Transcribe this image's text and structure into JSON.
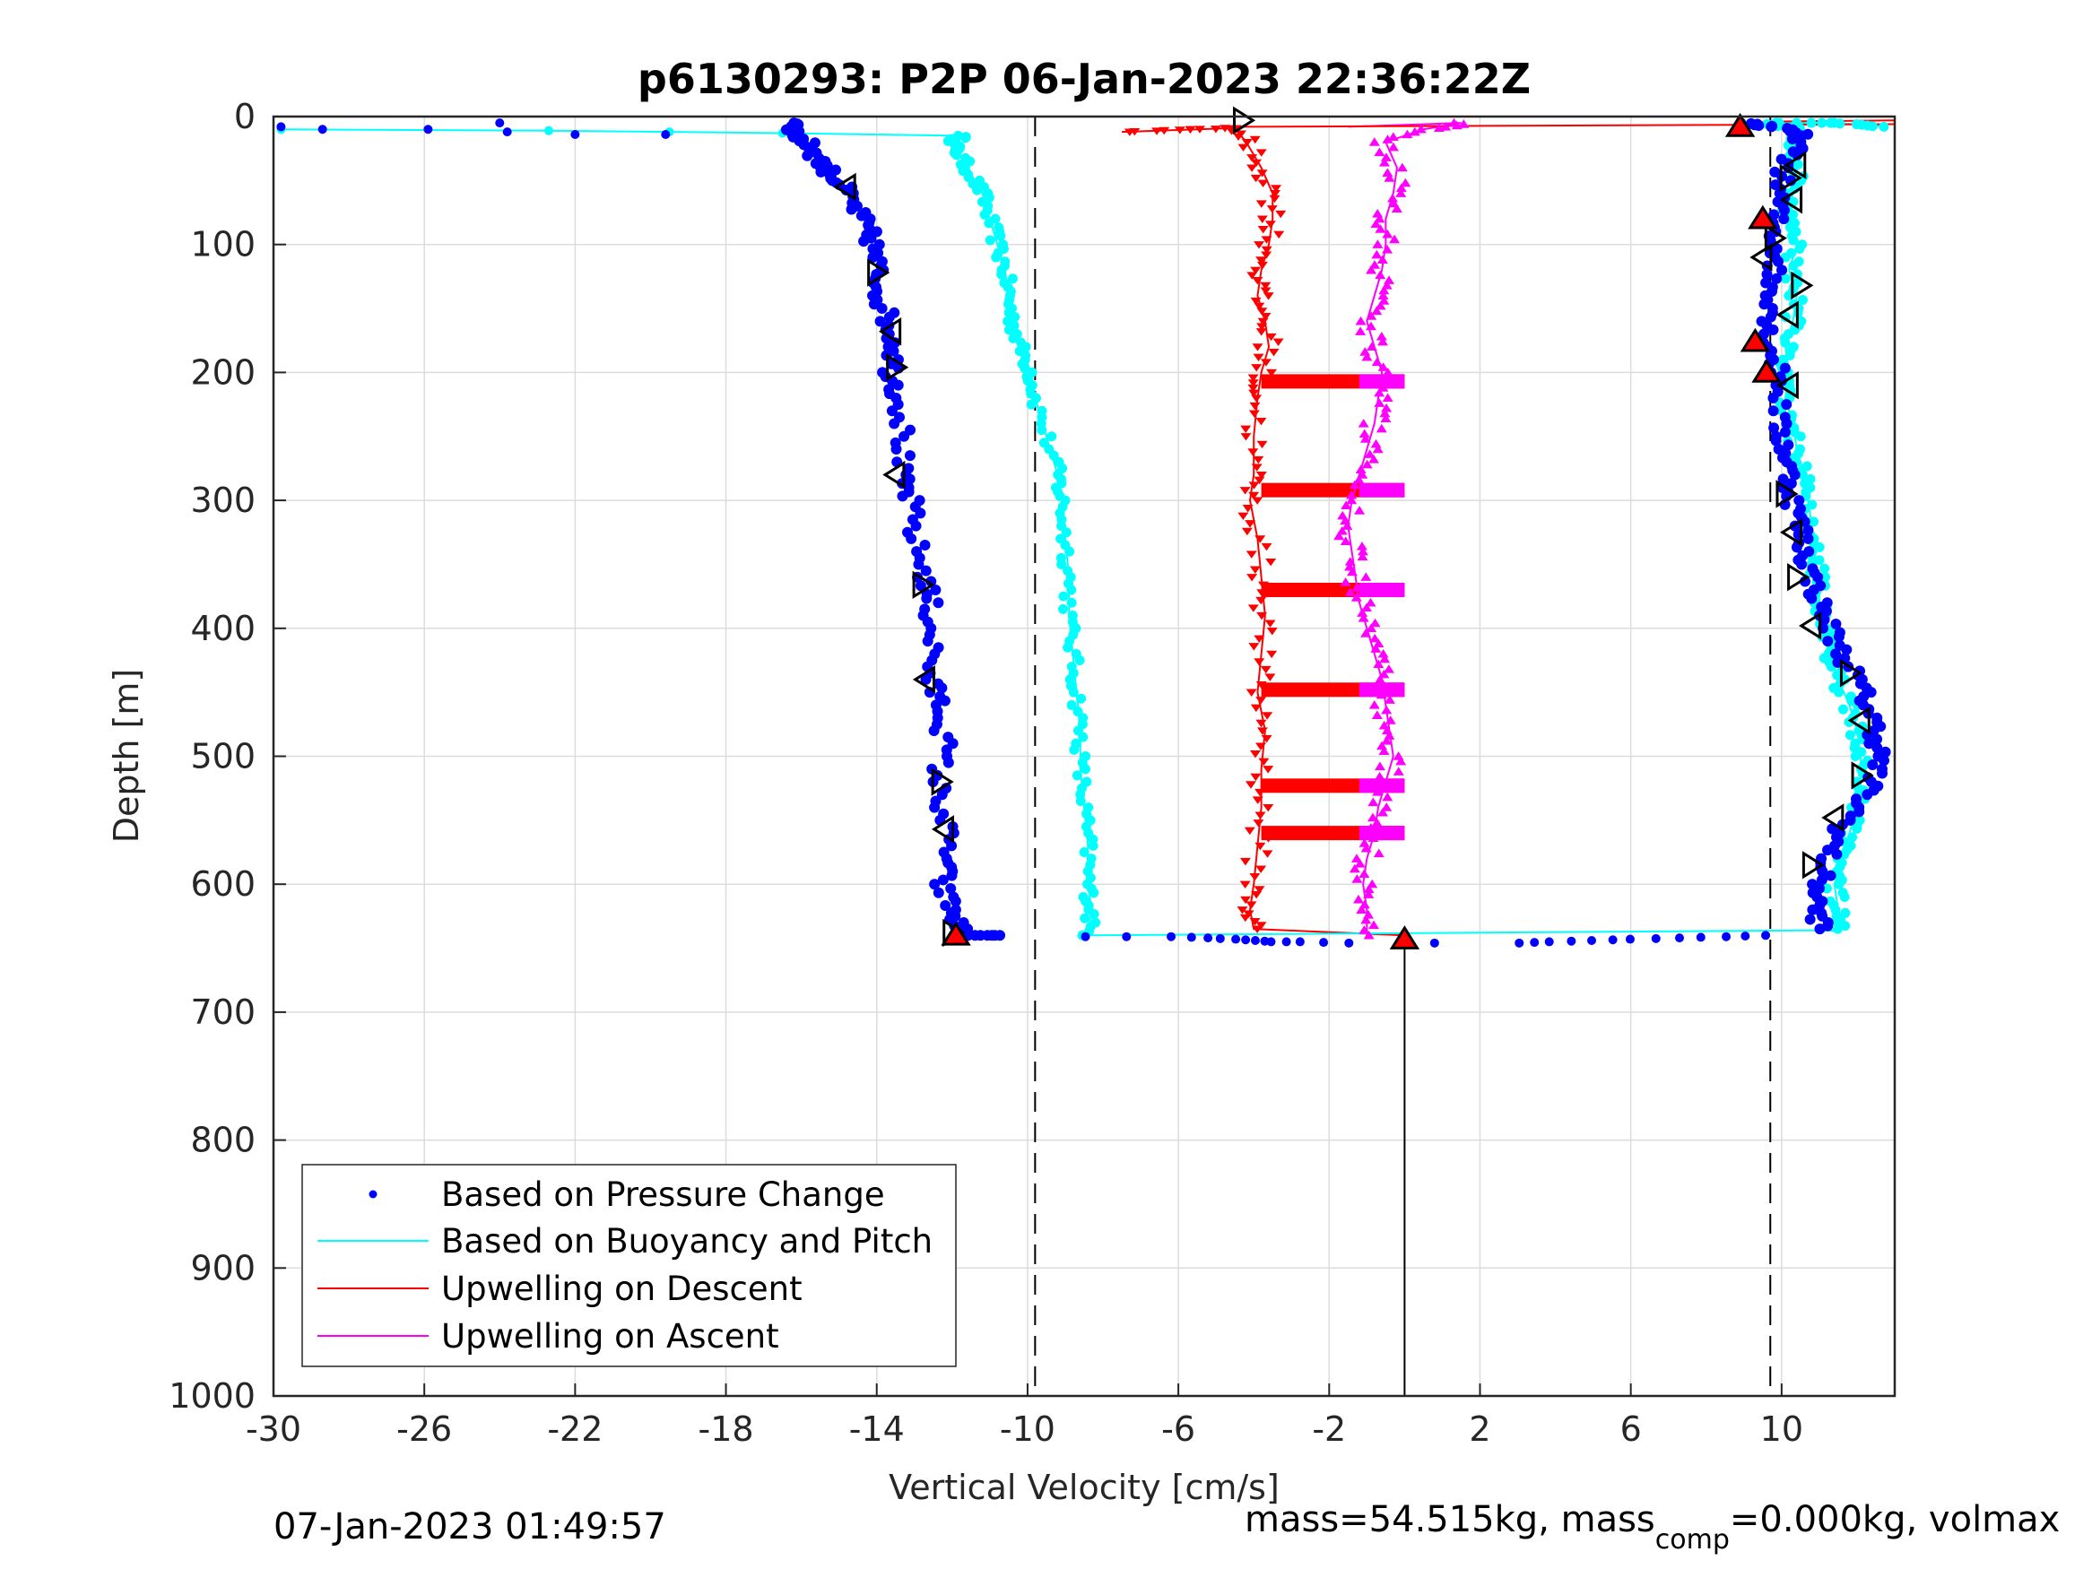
{
  "chart_data": {
    "type": "scatter",
    "title": "p6130293: P2P 06-Jan-2023 22:36:22Z",
    "xlabel": "Vertical Velocity [cm/s]",
    "ylabel": "Depth [m]",
    "xlim": [
      -30,
      13
    ],
    "ylim": [
      0,
      1000
    ],
    "y_reversed": true,
    "grid": true,
    "x_ticks": [
      -30,
      -26,
      -22,
      -18,
      -14,
      -10,
      -6,
      -2,
      2,
      6,
      10
    ],
    "x_tick_labels": [
      "-30",
      "-26",
      "-22",
      "-18",
      "-14",
      "-10",
      "-6",
      "-2",
      "2",
      "6",
      "10"
    ],
    "y_ticks": [
      0,
      100,
      200,
      300,
      400,
      500,
      600,
      700,
      800,
      900,
      1000
    ],
    "y_tick_labels": [
      "0",
      "100",
      "200",
      "300",
      "400",
      "500",
      "600",
      "700",
      "800",
      "900",
      "1000"
    ],
    "reference_lines": {
      "dashed_x": [
        -9.8,
        9.7
      ],
      "solid_x": [
        0
      ]
    },
    "legend": {
      "position": "bottom-left",
      "entries": [
        {
          "label": "Based on Pressure Change",
          "color": "#0000ff",
          "marker": "dot"
        },
        {
          "label": "Based on Buoyancy and Pitch",
          "color": "#00ffff",
          "marker": "line"
        },
        {
          "label": "Upwelling on Descent",
          "color": "#ff0000",
          "marker": "line"
        },
        {
          "label": "Upwelling on Ascent",
          "color": "#ff00ff",
          "marker": "line"
        }
      ]
    },
    "series": [
      {
        "key": "pressure_descent",
        "color": "#0000ff",
        "points": [
          [
            -29.8,
            8
          ],
          [
            -28.7,
            10
          ],
          [
            -25.9,
            10
          ],
          [
            -24,
            5
          ],
          [
            -23.8,
            12
          ],
          [
            -22,
            14
          ],
          [
            -19.6,
            14
          ],
          [
            -16.1,
            5
          ],
          [
            -16.2,
            13
          ],
          [
            -15.8,
            22
          ],
          [
            -15.5,
            35
          ],
          [
            -15.2,
            45
          ],
          [
            -14.9,
            55
          ],
          [
            -14.6,
            70
          ],
          [
            -14.3,
            85
          ],
          [
            -14.1,
            100
          ],
          [
            -14.0,
            120
          ],
          [
            -13.9,
            140
          ],
          [
            -13.7,
            160
          ],
          [
            -13.5,
            180
          ],
          [
            -13.6,
            200
          ],
          [
            -13.4,
            220
          ],
          [
            -13.3,
            250
          ],
          [
            -13.4,
            280
          ],
          [
            -13.1,
            300
          ],
          [
            -13.0,
            330
          ],
          [
            -12.7,
            360
          ],
          [
            -12.6,
            380
          ],
          [
            -12.5,
            410
          ],
          [
            -12.6,
            440
          ],
          [
            -12.3,
            460
          ],
          [
            -12.2,
            490
          ],
          [
            -12.4,
            520
          ],
          [
            -12.2,
            550
          ],
          [
            -12.1,
            580
          ],
          [
            -12.3,
            600
          ],
          [
            -12.0,
            620
          ],
          [
            -11.8,
            635
          ],
          [
            -11.6,
            640
          ],
          [
            -10.8,
            640
          ]
        ]
      },
      {
        "key": "pressure_apogee",
        "color": "#0000ff",
        "points": [
          [
            -8.5,
            641
          ],
          [
            -6.2,
            641
          ],
          [
            -5.2,
            642
          ],
          [
            -4.5,
            643
          ],
          [
            -4,
            644
          ],
          [
            -3.5,
            645
          ],
          [
            -2.8,
            645
          ],
          [
            -1.5,
            646
          ],
          [
            3,
            646
          ],
          [
            3.8,
            645
          ],
          [
            5,
            644
          ],
          [
            6,
            643
          ],
          [
            7.3,
            642
          ],
          [
            8.5,
            641
          ],
          [
            9.6,
            640
          ]
        ]
      },
      {
        "key": "pressure_ascent",
        "color": "#0000ff",
        "points": [
          [
            9.0,
            5
          ],
          [
            9.8,
            8
          ],
          [
            10.6,
            15
          ],
          [
            10.2,
            30
          ],
          [
            10.0,
            50
          ],
          [
            9.9,
            70
          ],
          [
            9.8,
            90
          ],
          [
            9.9,
            110
          ],
          [
            9.7,
            130
          ],
          [
            9.8,
            150
          ],
          [
            9.6,
            170
          ],
          [
            9.8,
            190
          ],
          [
            10.0,
            210
          ],
          [
            9.9,
            240
          ],
          [
            10.1,
            260
          ],
          [
            10.2,
            280
          ],
          [
            10.3,
            300
          ],
          [
            10.5,
            320
          ],
          [
            10.6,
            340
          ],
          [
            10.8,
            360
          ],
          [
            11.0,
            380
          ],
          [
            11.3,
            400
          ],
          [
            11.6,
            420
          ],
          [
            12.0,
            440
          ],
          [
            12.3,
            460
          ],
          [
            12.5,
            480
          ],
          [
            12.6,
            500
          ],
          [
            12.4,
            520
          ],
          [
            12.0,
            540
          ],
          [
            11.5,
            560
          ],
          [
            11.2,
            580
          ],
          [
            11.0,
            600
          ],
          [
            10.9,
            620
          ],
          [
            11.1,
            635
          ]
        ]
      },
      {
        "key": "buoyancy_descent",
        "color": "#00ffff",
        "points": [
          [
            -29.8,
            10
          ],
          [
            -22.7,
            11
          ],
          [
            -19.5,
            12
          ],
          [
            -16.5,
            13
          ],
          [
            -11.7,
            15
          ],
          [
            -12,
            20
          ],
          [
            -11.8,
            30
          ],
          [
            -11.5,
            45
          ],
          [
            -11.2,
            60
          ],
          [
            -11.0,
            80
          ],
          [
            -10.8,
            100
          ],
          [
            -10.6,
            120
          ],
          [
            -10.5,
            140
          ],
          [
            -10.4,
            160
          ],
          [
            -10.2,
            180
          ],
          [
            -9.9,
            200
          ],
          [
            -9.8,
            220
          ],
          [
            -9.5,
            250
          ],
          [
            -9.2,
            280
          ],
          [
            -9.1,
            300
          ],
          [
            -9.0,
            330
          ],
          [
            -8.9,
            360
          ],
          [
            -8.9,
            390
          ],
          [
            -8.8,
            420
          ],
          [
            -8.7,
            450
          ],
          [
            -8.6,
            480
          ],
          [
            -8.6,
            510
          ],
          [
            -8.5,
            540
          ],
          [
            -8.4,
            570
          ],
          [
            -8.4,
            600
          ],
          [
            -8.3,
            620
          ],
          [
            -8.4,
            640
          ]
        ]
      },
      {
        "key": "buoyancy_ascent",
        "color": "#00ffff",
        "points": [
          [
            11.6,
            635
          ],
          [
            11.5,
            620
          ],
          [
            11.4,
            600
          ],
          [
            11.6,
            580
          ],
          [
            11.8,
            560
          ],
          [
            12.0,
            540
          ],
          [
            12.1,
            520
          ],
          [
            12.1,
            500
          ],
          [
            12.0,
            480
          ],
          [
            11.8,
            460
          ],
          [
            11.5,
            440
          ],
          [
            11.3,
            420
          ],
          [
            11.2,
            400
          ],
          [
            11.0,
            380
          ],
          [
            11.0,
            360
          ],
          [
            10.8,
            340
          ],
          [
            10.8,
            320
          ],
          [
            10.7,
            300
          ],
          [
            10.6,
            280
          ],
          [
            10.4,
            260
          ],
          [
            10.3,
            240
          ],
          [
            10.1,
            220
          ],
          [
            10.2,
            200
          ],
          [
            10.1,
            180
          ],
          [
            10.3,
            160
          ],
          [
            10.4,
            140
          ],
          [
            10.2,
            120
          ],
          [
            10.4,
            100
          ],
          [
            10.1,
            80
          ],
          [
            10.3,
            60
          ],
          [
            10.4,
            40
          ],
          [
            10.2,
            25
          ],
          [
            10.4,
            10
          ],
          [
            9.7,
            5
          ],
          [
            11.5,
            5
          ],
          [
            12.8,
            8
          ]
        ]
      },
      {
        "key": "upwelling_descent",
        "color": "#ff0000",
        "points": [
          [
            -7.5,
            12
          ],
          [
            -5.5,
            10
          ],
          [
            -4.5,
            9
          ],
          [
            -4.2,
            20
          ],
          [
            -3.8,
            40
          ],
          [
            -3.5,
            60
          ],
          [
            -3.5,
            80
          ],
          [
            -3.6,
            100
          ],
          [
            -3.8,
            120
          ],
          [
            -3.9,
            140
          ],
          [
            -3.7,
            160
          ],
          [
            -3.6,
            180
          ],
          [
            -3.8,
            200
          ],
          [
            -3.9,
            220
          ],
          [
            -4.0,
            250
          ],
          [
            -4.0,
            280
          ],
          [
            -4.1,
            300
          ],
          [
            -3.9,
            330
          ],
          [
            -3.8,
            360
          ],
          [
            -3.7,
            390
          ],
          [
            -3.8,
            420
          ],
          [
            -3.9,
            450
          ],
          [
            -3.7,
            480
          ],
          [
            -3.8,
            510
          ],
          [
            -3.8,
            540
          ],
          [
            -3.9,
            570
          ],
          [
            -4.0,
            600
          ],
          [
            -4.1,
            620
          ],
          [
            -4.0,
            635
          ],
          [
            0.0,
            640
          ]
        ]
      },
      {
        "key": "upwelling_ascent",
        "color": "#ff00ff",
        "points": [
          [
            -1.0,
            640
          ],
          [
            -1.0,
            620
          ],
          [
            -1.1,
            600
          ],
          [
            -1.0,
            580
          ],
          [
            -0.8,
            560
          ],
          [
            -0.7,
            540
          ],
          [
            -0.5,
            520
          ],
          [
            -0.3,
            500
          ],
          [
            -0.4,
            480
          ],
          [
            -0.5,
            460
          ],
          [
            -0.6,
            440
          ],
          [
            -0.8,
            420
          ],
          [
            -1.0,
            400
          ],
          [
            -1.2,
            380
          ],
          [
            -1.3,
            360
          ],
          [
            -1.4,
            340
          ],
          [
            -1.5,
            320
          ],
          [
            -1.4,
            300
          ],
          [
            -1.2,
            280
          ],
          [
            -1.0,
            260
          ],
          [
            -0.8,
            240
          ],
          [
            -0.7,
            220
          ],
          [
            -0.6,
            200
          ],
          [
            -0.8,
            180
          ],
          [
            -1.0,
            160
          ],
          [
            -0.8,
            140
          ],
          [
            -0.6,
            120
          ],
          [
            -0.5,
            100
          ],
          [
            -0.5,
            80
          ],
          [
            -0.3,
            60
          ],
          [
            -0.2,
            40
          ],
          [
            -0.5,
            20
          ],
          [
            0.5,
            10
          ],
          [
            1.5,
            5
          ],
          [
            -1.5,
            8
          ]
        ]
      }
    ],
    "bands": [
      {
        "color": "#ff0000",
        "x0": -3.8,
        "x1": 0,
        "depths": [
          207,
          292,
          370,
          448,
          523,
          560
        ]
      },
      {
        "color": "#ff00ff",
        "x0": -1.2,
        "x1": 0,
        "depths": [
          207,
          292,
          370,
          448,
          523,
          560
        ]
      }
    ],
    "event_markers": [
      {
        "shape": "tri-right",
        "fill": "none",
        "x": -4.3,
        "y": 3
      },
      {
        "shape": "tri-left",
        "fill": "none",
        "x": -14.8,
        "y": 55
      },
      {
        "shape": "tri-right",
        "fill": "none",
        "x": -14.0,
        "y": 122
      },
      {
        "shape": "tri-left",
        "fill": "none",
        "x": -13.6,
        "y": 168
      },
      {
        "shape": "tri-right",
        "fill": "none",
        "x": -13.5,
        "y": 196
      },
      {
        "shape": "tri-left",
        "fill": "none",
        "x": -13.5,
        "y": 280
      },
      {
        "shape": "tri-right",
        "fill": "none",
        "x": -12.8,
        "y": 366
      },
      {
        "shape": "tri-left",
        "fill": "none",
        "x": -12.7,
        "y": 440
      },
      {
        "shape": "tri-right",
        "fill": "none",
        "x": -12.3,
        "y": 520
      },
      {
        "shape": "tri-left",
        "fill": "none",
        "x": -12.2,
        "y": 557
      },
      {
        "shape": "tri-right",
        "fill": "none",
        "x": -12.0,
        "y": 638
      },
      {
        "shape": "tri-up",
        "fill": "#ff0000",
        "x": -11.9,
        "y": 640
      },
      {
        "shape": "tri-up",
        "fill": "#ff0000",
        "x": 0.0,
        "y": 643
      },
      {
        "shape": "tri-right",
        "fill": "none",
        "x": 10.2,
        "y": 48
      },
      {
        "shape": "tri-left",
        "fill": "none",
        "x": 10.3,
        "y": 65
      },
      {
        "shape": "tri-left",
        "fill": "none",
        "x": 10.4,
        "y": 38
      },
      {
        "shape": "tri-right",
        "fill": "none",
        "x": 9.8,
        "y": 95
      },
      {
        "shape": "tri-left",
        "fill": "none",
        "x": 9.5,
        "y": 110
      },
      {
        "shape": "tri-right",
        "fill": "none",
        "x": 10.5,
        "y": 132
      },
      {
        "shape": "tri-left",
        "fill": "none",
        "x": 10.2,
        "y": 155
      },
      {
        "shape": "tri-left",
        "fill": "none",
        "x": 10.2,
        "y": 210
      },
      {
        "shape": "tri-right",
        "fill": "none",
        "x": 10.1,
        "y": 295
      },
      {
        "shape": "tri-left",
        "fill": "none",
        "x": 10.3,
        "y": 325
      },
      {
        "shape": "tri-right",
        "fill": "none",
        "x": 10.4,
        "y": 360
      },
      {
        "shape": "tri-left",
        "fill": "none",
        "x": 10.8,
        "y": 398
      },
      {
        "shape": "tri-right",
        "fill": "none",
        "x": 11.8,
        "y": 435
      },
      {
        "shape": "tri-left",
        "fill": "none",
        "x": 12.1,
        "y": 472
      },
      {
        "shape": "tri-right",
        "fill": "none",
        "x": 12.1,
        "y": 515
      },
      {
        "shape": "tri-left",
        "fill": "none",
        "x": 11.4,
        "y": 548
      },
      {
        "shape": "tri-right",
        "fill": "none",
        "x": 10.8,
        "y": 585
      },
      {
        "shape": "tri-up",
        "fill": "#ff0000",
        "x": 8.9,
        "y": 8
      },
      {
        "shape": "tri-up",
        "fill": "#ff0000",
        "x": 9.5,
        "y": 80
      },
      {
        "shape": "tri-up",
        "fill": "#ff0000",
        "x": 9.3,
        "y": 176
      },
      {
        "shape": "tri-up",
        "fill": "#ff0000",
        "x": 9.6,
        "y": 200
      }
    ],
    "annotations": {
      "timestamp": "07-Jan-2023 01:49:57",
      "mass_prefix": "mass=54.515kg, mass",
      "mass_subscript": "comp",
      "mass_suffix": "=0.000kg, volmax"
    }
  }
}
